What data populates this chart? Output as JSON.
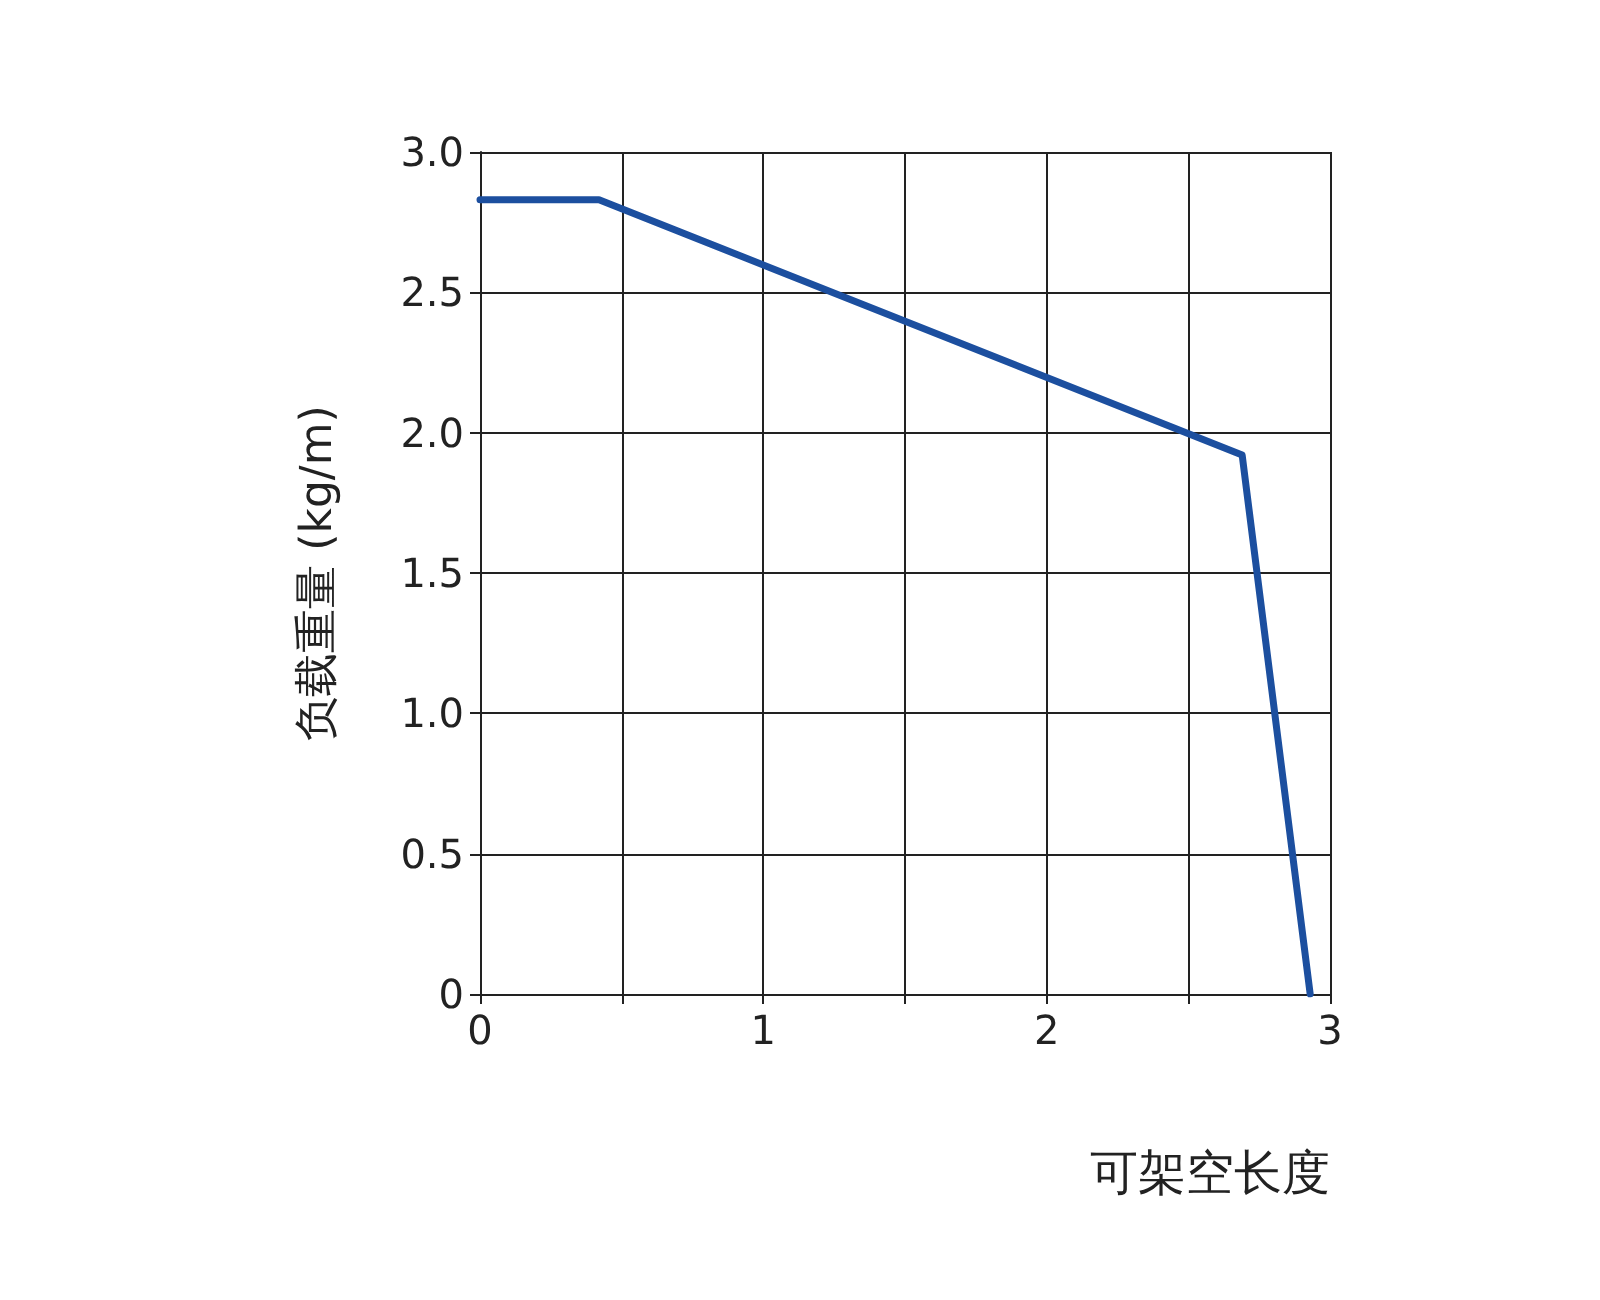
{
  "chart_data": {
    "type": "line",
    "xlabel": "可架空长度",
    "ylabel": "负载重量 (kg/m)",
    "x": [
      0,
      0.42,
      2.69,
      2.93
    ],
    "series": [
      {
        "color": "#1c4f9f",
        "values": [
          2.83,
          2.83,
          1.92,
          0
        ]
      }
    ],
    "xlim": [
      0,
      3
    ],
    "xticks": [
      0,
      {
        "value": 0.5,
        "label": null
      },
      1,
      {
        "value": 1.5,
        "label": null
      },
      2,
      {
        "value": 2.5,
        "label": null
      },
      3
    ],
    "ylim": [
      0,
      3
    ],
    "yticks": [
      0,
      0.5,
      {
        "value": 1,
        "label": "1.0"
      },
      1.5,
      {
        "value": 2,
        "label": "2.0"
      },
      2.5,
      {
        "value": 3,
        "label": "3.0"
      }
    ],
    "grid": true,
    "marker": "none",
    "line_style": "solid"
  }
}
